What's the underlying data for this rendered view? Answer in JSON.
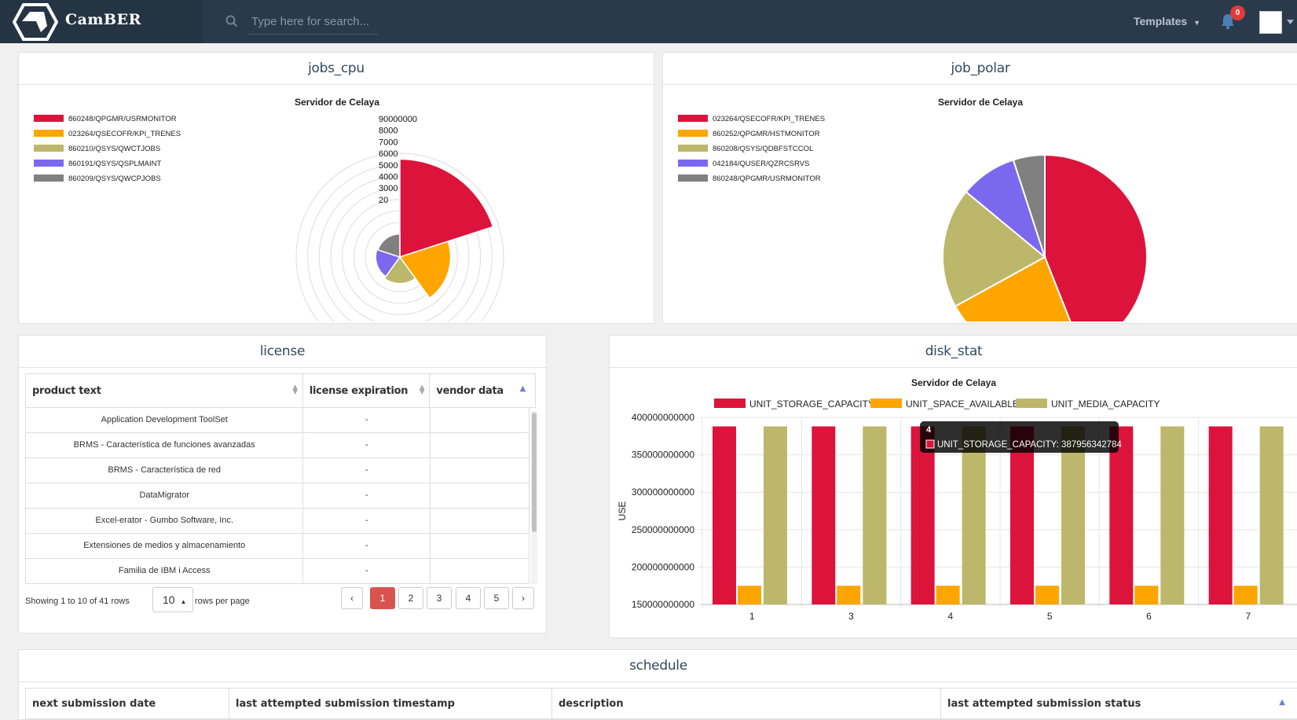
{
  "app": {
    "name": "CamBER"
  },
  "search": {
    "placeholder": "Type here for search..."
  },
  "header": {
    "templates_label": "Templates",
    "notification_count": "0"
  },
  "panels": {
    "jobs_cpu": {
      "title": "jobs_cpu",
      "chart_data": {
        "type": "polar-area",
        "title": "Servidor de Celaya",
        "categories": [
          "860248/QPGMR/USRMONITOR",
          "023264/QSECOFR/KPI_TRENES",
          "860210/QSYS/QWCTJOBS",
          "860191/QSYS/QSPLMAINT",
          "860209/QSYS/QWCPJOBS"
        ],
        "values": [
          85000000,
          44000000,
          23000000,
          21000000,
          20000000
        ],
        "r_ticks": [
          "90000000",
          "8000",
          "7000",
          "6000",
          "5000",
          "4000",
          "3000",
          "20"
        ],
        "colors": [
          "#dc143c",
          "#ffa500",
          "#bdb76b",
          "#7b68ee",
          "#808080"
        ]
      }
    },
    "job_polar": {
      "title": "job_polar",
      "chart_data": {
        "type": "pie",
        "title": "Servidor de Celaya",
        "categories": [
          "023264/QSECOFR/KPI_TRENES",
          "860252/QPGMR/HSTMONITOR",
          "860208/QSYS/QDBFSTCCOL",
          "042184/QUSER/QZRCSRVS",
          "860248/QPGMR/USRMONITOR"
        ],
        "values": [
          44,
          23,
          19,
          9,
          5
        ],
        "colors": [
          "#dc143c",
          "#ffa500",
          "#bdb76b",
          "#7b68ee",
          "#808080"
        ]
      }
    },
    "license": {
      "title": "license",
      "columns": [
        "product text",
        "license expiration",
        "vendor data"
      ],
      "rows": [
        [
          "Application Development ToolSet",
          "-",
          ""
        ],
        [
          "BRMS - Característica de funciones avanzadas",
          "-",
          ""
        ],
        [
          "BRMS - Característica de red",
          "-",
          ""
        ],
        [
          "DataMigrator",
          "-",
          ""
        ],
        [
          "Excel-erator - Gumbo Software, Inc.",
          "-",
          ""
        ],
        [
          "Extensiones de medios y almacenamiento",
          "-",
          ""
        ],
        [
          "Familia de IBM i Access",
          "-",
          ""
        ]
      ],
      "showing_text": "Showing 1 to 10 of 41 rows",
      "rows_per_page": "10",
      "rows_per_page_label": "rows per page",
      "pages": [
        "‹",
        "1",
        "2",
        "3",
        "4",
        "5",
        "›"
      ],
      "active_page": "1"
    },
    "disk_stat": {
      "title": "disk_stat",
      "chart_data": {
        "type": "bar",
        "title": "Servidor de Celaya",
        "categories": [
          "1",
          "3",
          "4",
          "5",
          "6",
          "7"
        ],
        "ylabel": "USE",
        "ylim": [
          150000000000,
          400000000000
        ],
        "y_ticks": [
          "400000000000",
          "350000000000",
          "300000000000",
          "250000000000",
          "200000000000",
          "150000000000"
        ],
        "series": [
          {
            "name": "UNIT_STORAGE_CAPACITY",
            "color": "#dc143c",
            "values": [
              387956342784,
              387956342784,
              387956342784,
              387956342784,
              387956342784,
              387956342784
            ]
          },
          {
            "name": "UNIT_SPACE_AVAILABLE",
            "color": "#ffa500",
            "values": [
              175000000000,
              175000000000,
              175000000000,
              175000000000,
              175000000000,
              175000000000
            ]
          },
          {
            "name": "UNIT_MEDIA_CAPACITY",
            "color": "#bdb76b",
            "values": [
              387956342784,
              387956342784,
              387956342784,
              387956342784,
              387956342784,
              387956342784
            ]
          }
        ],
        "tooltip": {
          "title": "4",
          "text": "UNIT_STORAGE_CAPACITY: 387956342784"
        }
      }
    },
    "schedule": {
      "title": "schedule",
      "columns": [
        "next submission date",
        "last attempted submission timestamp",
        "description",
        "last attempted submission status"
      ]
    }
  }
}
